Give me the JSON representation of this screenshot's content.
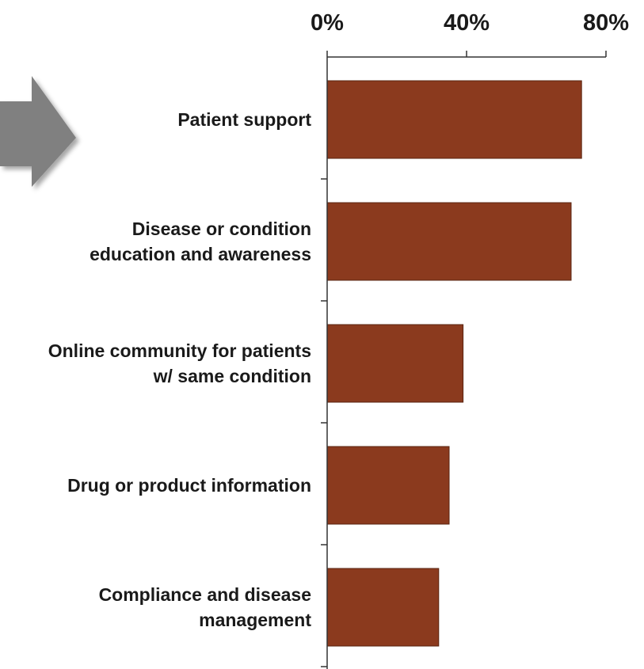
{
  "chart_data": {
    "type": "bar",
    "orientation": "horizontal",
    "categories": [
      [
        "Patient support"
      ],
      [
        "Disease or condition",
        "education and awareness"
      ],
      [
        "Online community for patients",
        "w/ same condition"
      ],
      [
        "Drug or product information"
      ],
      [
        "Compliance and disease",
        "management"
      ]
    ],
    "values": [
      73,
      70,
      39,
      35,
      32
    ],
    "xlim": [
      0,
      80
    ],
    "xticks": [
      0,
      40,
      80
    ],
    "xtick_labels": [
      "0%",
      "40%",
      "80%"
    ],
    "axis_position": "top",
    "grid": false,
    "bar_color": "#8b3a1e",
    "arrow_color": "#808080",
    "title": "",
    "xlabel": "",
    "ylabel": ""
  }
}
